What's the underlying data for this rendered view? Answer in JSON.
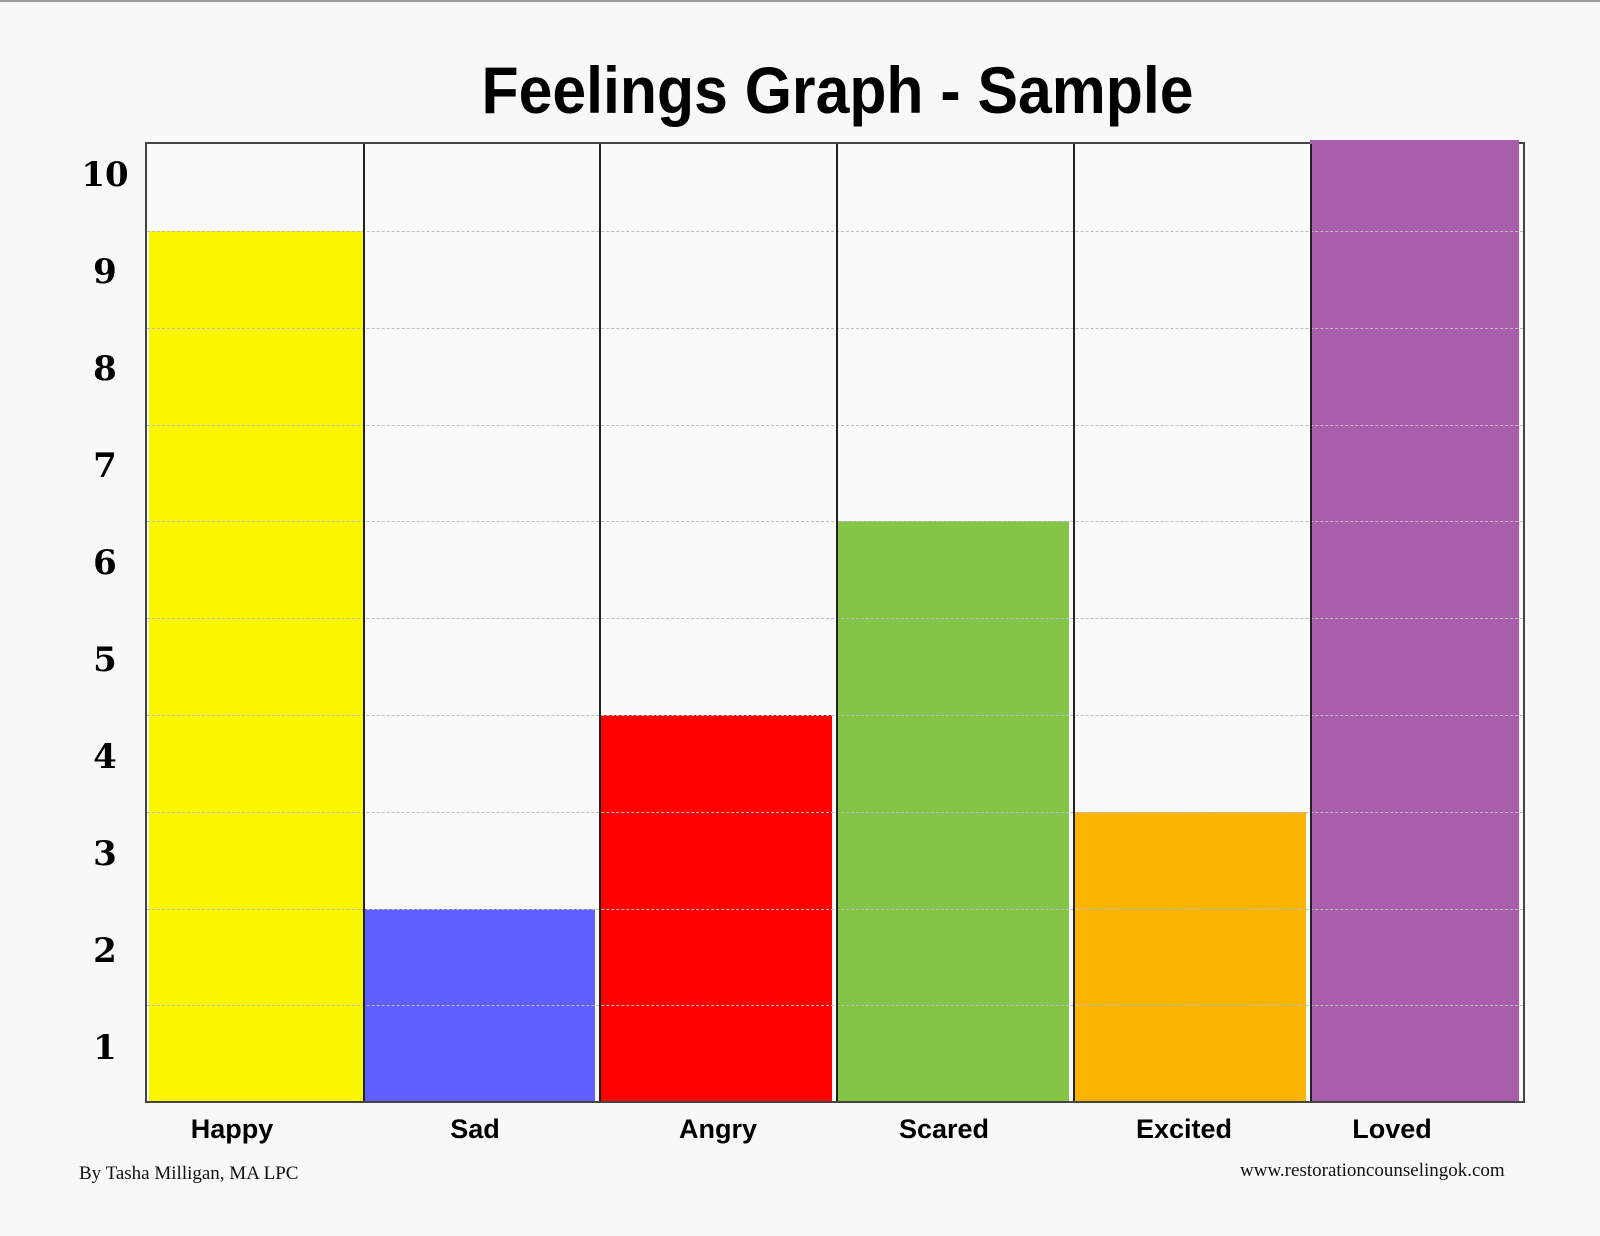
{
  "chart_data": {
    "type": "bar",
    "title": "Feelings Graph - Sample",
    "categories": [
      "Happy",
      "Sad",
      "Angry",
      "Scared",
      "Excited",
      "Loved"
    ],
    "values": [
      9,
      2,
      4,
      6,
      3,
      10
    ],
    "colors": [
      "#fbf700",
      "#5f5ffd",
      "#ff0000",
      "#84c447",
      "#fbb400",
      "#a95eac"
    ],
    "xlabel": "",
    "ylabel": "",
    "yticks": [
      "10",
      "9",
      "8",
      "7",
      "6",
      "5",
      "4",
      "3",
      "2",
      "1"
    ],
    "ylim": [
      0,
      10
    ],
    "grid": "dashed horizontal band lines",
    "legend": "none"
  },
  "footer": {
    "author": "By Tasha Milligan, MA LPC",
    "website": "www.restorationcounselingok.com"
  }
}
